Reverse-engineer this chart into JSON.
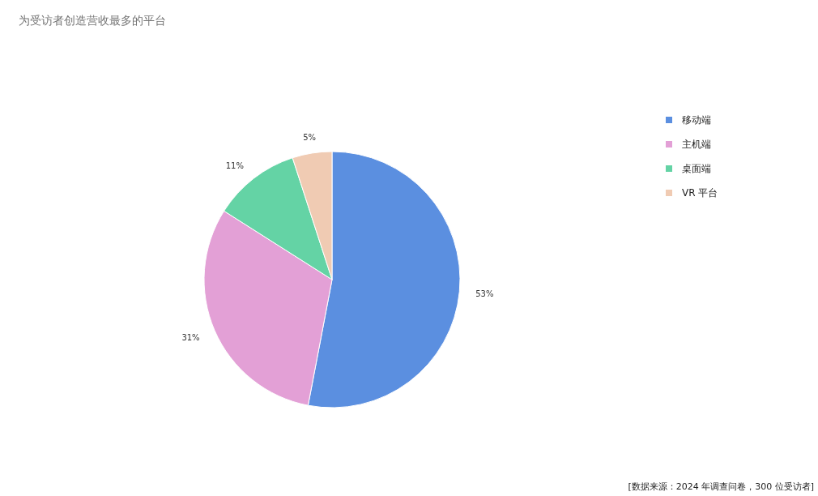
{
  "chart_data": {
    "type": "pie",
    "title": "为受访者创造营收最多的平台",
    "categories": [
      "移动端",
      "主机端",
      "桌面端",
      "VR 平台"
    ],
    "values": [
      53,
      31,
      11,
      5
    ],
    "value_labels": [
      "53%",
      "31%",
      "11%",
      "5%"
    ],
    "colors": [
      "#5b8fe0",
      "#e3a0d6",
      "#64d3a5",
      "#f0cbb3"
    ],
    "legend": "top right",
    "annotations": [
      "[数据来源：2024 年调查问卷，300 位受访者]"
    ]
  }
}
